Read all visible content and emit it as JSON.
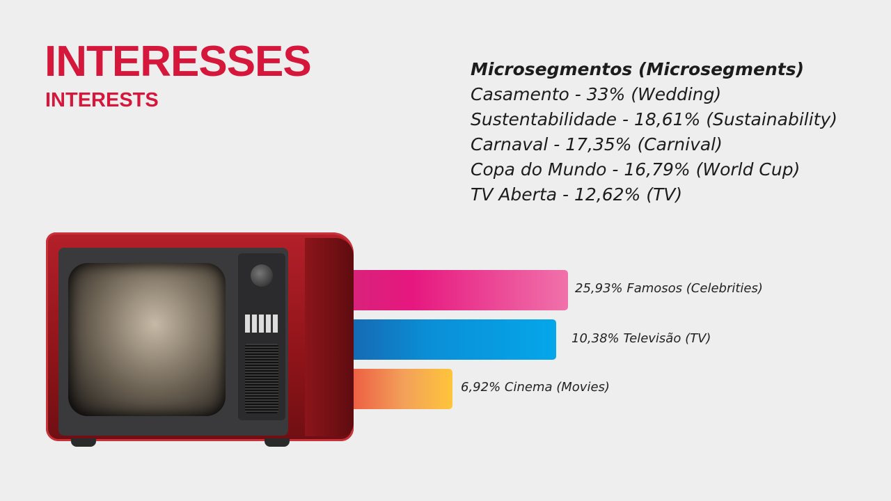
{
  "header": {
    "title": "INTERESSES",
    "subtitle": "INTERESTS"
  },
  "microsegments": {
    "heading": "Microsegmentos (Microsegments)",
    "items": [
      "Casamento - 33% (Wedding)",
      "Sustentabilidade - 18,61% (Sustainability)",
      "Carnaval - 17,35% (Carnival)",
      "Copa do Mundo - 16,79% (World Cup)",
      "TV Aberta - 12,62% (TV)"
    ]
  },
  "colors": {
    "brand": "#d4173a",
    "bar_pink": "#e6177f",
    "bar_blue": "#0a9be0",
    "bar_orange": "#f3a13a"
  },
  "chart_data": {
    "type": "bar",
    "orientation": "horizontal",
    "categories": [
      "Famosos (Celebrities)",
      "Televisão (TV)",
      "Cinema (Movies)"
    ],
    "values": [
      25.93,
      10.38,
      6.92
    ],
    "labels": [
      "25,93% Famosos (Celebrities)",
      "10,38% Televisão (TV)",
      "6,92% Cinema (Movies)"
    ],
    "grid": false
  }
}
